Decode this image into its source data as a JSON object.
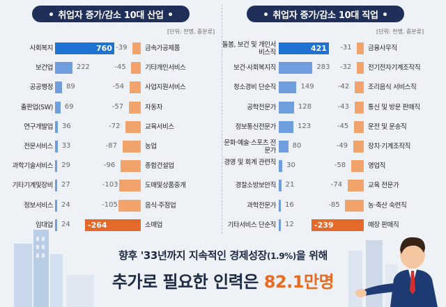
{
  "left_panel": {
    "title": "취업자 증가/감소 10대 산업",
    "unit_note": "[단위: 천명, 중분류]",
    "chart_data": {
      "type": "bar",
      "title": "취업자 증가/감소 10대 산업",
      "increase": {
        "categories": [
          "사회복지",
          "보건업",
          "공공행정",
          "출판업(SW)",
          "연구개발업",
          "전문서비스",
          "과학기술서비스",
          "기타기계및장비",
          "정보서비스",
          "임대업"
        ],
        "values": [
          760,
          222,
          89,
          69,
          36,
          33,
          29,
          27,
          24,
          24
        ],
        "value_labels": [
          "760",
          "222",
          "89",
          "69",
          "36",
          "33",
          "29",
          "27",
          "24",
          "24"
        ]
      },
      "decrease": {
        "categories": [
          "금속가공제품",
          "기타개인서비스",
          "사업지원서비스",
          "자동차",
          "교육서비스",
          "농업",
          "종합건설업",
          "도매및상품중개",
          "음식·주점업",
          "소매업"
        ],
        "values": [
          -39,
          -45,
          -54,
          -57,
          -72,
          -87,
          -96,
          -103,
          -105,
          -264
        ],
        "value_labels": [
          "-39",
          "-45",
          "-54",
          "-57",
          "-72",
          "-87",
          "-96",
          "-103",
          "-105",
          "-264"
        ]
      }
    }
  },
  "right_panel": {
    "title": "취업자 증가/감소 10대 직업",
    "unit_note": "[단위: 천명, 중분류]",
    "chart_data": {
      "type": "bar",
      "title": "취업자 증가/감소 10대 직업",
      "increase": {
        "categories": [
          "돌봄, 보건 및 개인서비스직",
          "보건·사회복지직",
          "청소경비 단순직",
          "공학전문가",
          "정보통신전문가",
          "문화·예술·스포츠 전문가",
          "경영 및 회계 관련직",
          "경찰소방보안직",
          "과학전문가",
          "기타서비스 단순직"
        ],
        "values": [
          421,
          283,
          149,
          128,
          123,
          80,
          30,
          21,
          16,
          12
        ],
        "value_labels": [
          "421",
          "283",
          "149",
          "128",
          "123",
          "80",
          "30",
          "21",
          "16",
          "12"
        ]
      },
      "decrease": {
        "categories": [
          "금융사무직",
          "전기전자기계조작직",
          "조리음식 서비스직",
          "통신 및 방문 판매직",
          "운전 및 운송직",
          "장치·기계조작직",
          "영업직",
          "교육 전문가",
          "농·축산 숙련직",
          "매장 판매직"
        ],
        "values": [
          -31,
          -32,
          -42,
          -43,
          -45,
          -49,
          -58,
          -74,
          -85,
          -239
        ],
        "value_labels": [
          "-31",
          "-32",
          "-42",
          "-43",
          "-45",
          "-49",
          "-58",
          "-74",
          "-85",
          "-239"
        ]
      }
    }
  },
  "bottom": {
    "line1_main": "향후 '33년까지 지속적인 경제성장",
    "line1_small": "(1.9%)",
    "line1_end": "을 위해",
    "line2_main": "추가로 필요한 인력은 ",
    "line2_highlight": "82.1만명"
  },
  "colors": {
    "navy": "#1f2f5a",
    "blue_top": "#1e73d2",
    "blue": "#6f9ede",
    "orange_top": "#e4692a",
    "orange": "#f0a46b",
    "highlight": "#e86a21"
  }
}
